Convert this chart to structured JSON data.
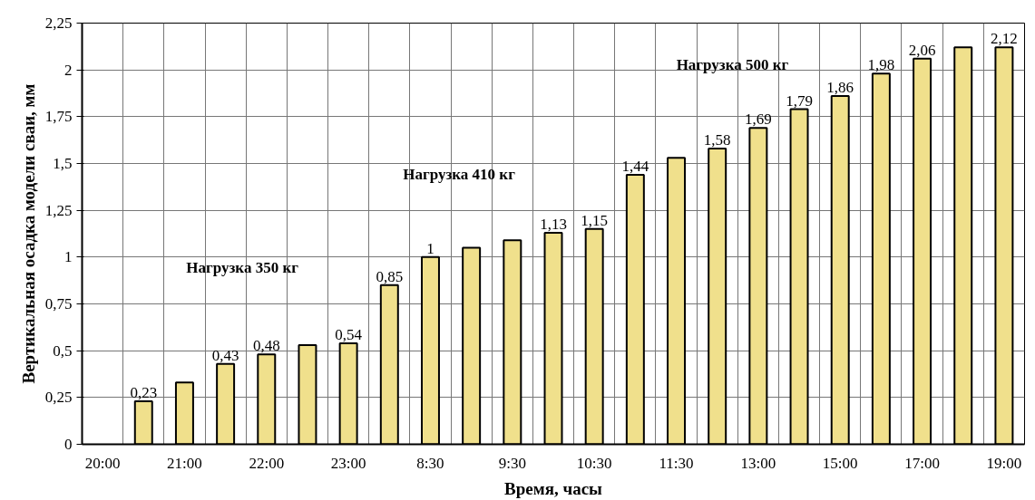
{
  "chart_data": {
    "type": "bar",
    "xlabel": "Время, часы",
    "ylabel": "Вертикальная осадка модели сваи, мм",
    "categories": [
      "20:00",
      null,
      "21:00",
      null,
      "22:00",
      null,
      "23:00",
      null,
      "8:30",
      null,
      "9:30",
      null,
      "10:30",
      null,
      "11:30",
      null,
      "13:00",
      null,
      "15:00",
      null,
      "17:00",
      null,
      "19:00"
    ],
    "values": [
      null,
      0.23,
      0.33,
      0.43,
      0.48,
      0.53,
      0.54,
      0.85,
      1.0,
      1.05,
      1.09,
      1.13,
      1.15,
      1.44,
      1.53,
      1.58,
      1.69,
      1.79,
      1.86,
      1.98,
      2.06,
      2.12,
      2.12
    ],
    "value_labels": [
      null,
      "0,23",
      null,
      "0,43",
      "0,48",
      null,
      "0,54",
      "0,85",
      "1",
      null,
      null,
      "1,13",
      "1,15",
      "1,44",
      null,
      "1,58",
      "1,69",
      "1,79",
      "1,86",
      "1,98",
      "2,06",
      null,
      "2,12"
    ],
    "color": "#f0e08c",
    "ylim": [
      0,
      2.25
    ],
    "yticks": [
      0,
      {
        "value": 0.25,
        "label": "0,25"
      },
      {
        "value": 0.5,
        "label": "0,5"
      },
      {
        "value": 0.75,
        "label": "0,75"
      },
      1,
      {
        "value": 1.25,
        "label": "1,25"
      },
      {
        "value": 1.5,
        "label": "1,5"
      },
      {
        "value": 1.75,
        "label": "1,75"
      },
      2,
      {
        "value": 2.25,
        "label": "2,25"
      }
    ],
    "grid": true,
    "annotations": [
      "Нагрузка 350 кг",
      "Нагрузка 410 кг",
      "Нагрузка 500 кг"
    ]
  }
}
